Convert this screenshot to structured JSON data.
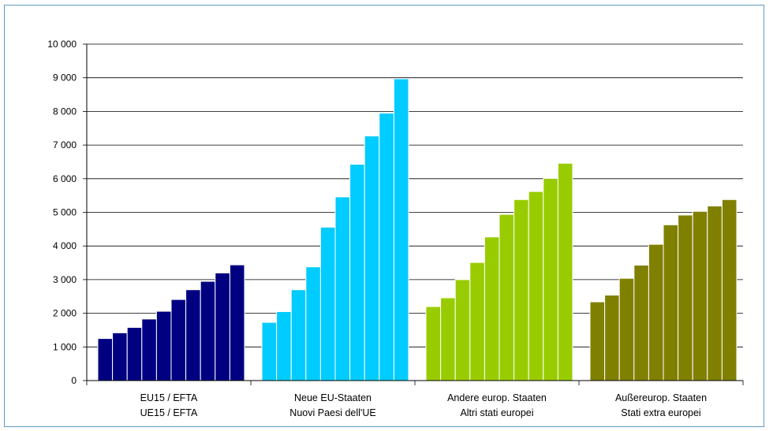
{
  "chart_data": {
    "type": "bar",
    "title": "",
    "xlabel": "",
    "ylabel": "",
    "ylim": [
      0,
      10000
    ],
    "yticks": [
      0,
      1000,
      2000,
      3000,
      4000,
      5000,
      6000,
      7000,
      8000,
      9000,
      10000
    ],
    "ytick_labels": [
      "0",
      "1 000",
      "2 000",
      "3 000",
      "4 000",
      "5 000",
      "6 000",
      "7 000",
      "8 000",
      "9 000",
      "10 000"
    ],
    "grid": true,
    "legend": "none",
    "groups": [
      {
        "label_line1": "EU15 / EFTA",
        "label_line2": "UE15 / EFTA",
        "color": "#000080",
        "values": [
          1250,
          1420,
          1580,
          1830,
          2060,
          2410,
          2700,
          2950,
          3200,
          3440
        ]
      },
      {
        "label_line1": "Neue EU-Staaten",
        "label_line2": "Nuovi Paesi dell'UE",
        "color": "#00ccff",
        "values": [
          1730,
          2050,
          2700,
          3380,
          4560,
          5460,
          6430,
          7270,
          7950,
          8970
        ]
      },
      {
        "label_line1": "Andere europ. Staaten",
        "label_line2": "Altri stati europei",
        "color": "#99cc00",
        "values": [
          2200,
          2460,
          3000,
          3510,
          4270,
          4940,
          5380,
          5620,
          6010,
          6460
        ]
      },
      {
        "label_line1": "Außereurop. Staaten",
        "label_line2": "Stati extra europei",
        "color": "#808000",
        "values": [
          2340,
          2540,
          3040,
          3430,
          4050,
          4630,
          4920,
          5030,
          5190,
          5380
        ]
      }
    ]
  }
}
